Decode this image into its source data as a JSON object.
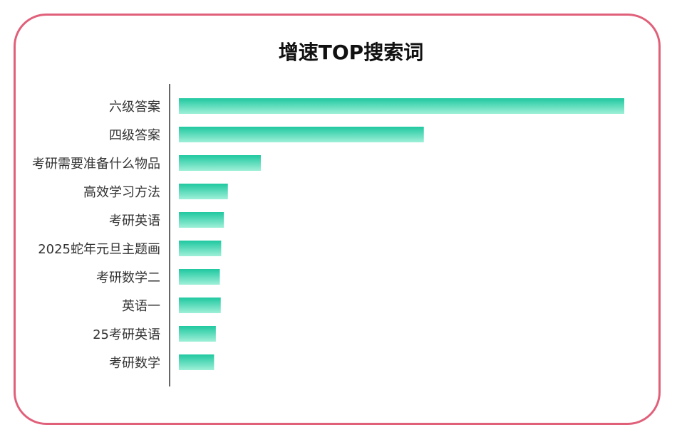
{
  "chart_data": {
    "type": "bar",
    "orientation": "horizontal",
    "title": "增速TOP搜索词",
    "categories": [
      "六级答案",
      "四级答案",
      "考研需要准备什么物品",
      "高效学习方法",
      "考研英语",
      "2025蛇年元旦主题画",
      "考研数学二",
      "英语一",
      "25考研英语",
      "考研数学"
    ],
    "values": [
      100,
      55,
      18.4,
      11,
      10.1,
      9.5,
      9.2,
      9.4,
      8.3,
      7.9
    ],
    "xlabel": "",
    "ylabel": "",
    "xlim": [
      0,
      100
    ],
    "grid": false,
    "legend": "none",
    "colors": {
      "bar_top": "#1fc8a0",
      "bar_bottom": "#9ef0d8",
      "axis": "#666666",
      "border": "#e0607a"
    }
  }
}
